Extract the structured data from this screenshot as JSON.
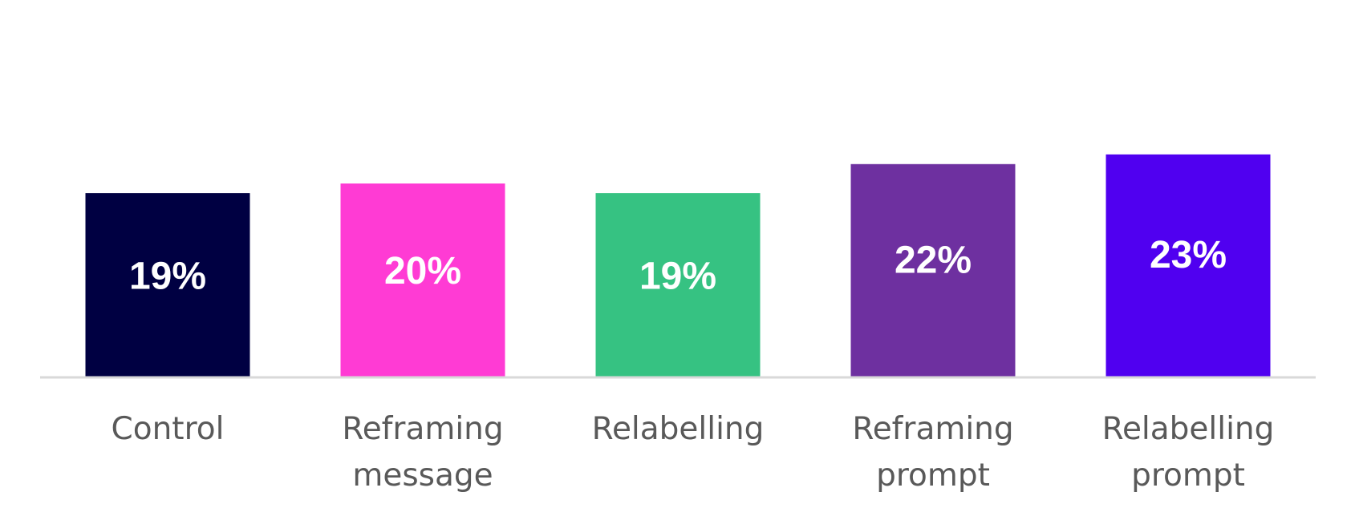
{
  "chart_data": {
    "type": "bar",
    "title": "",
    "xlabel": "",
    "ylabel": "",
    "categories": [
      [
        "Control"
      ],
      [
        "Reframing",
        "message"
      ],
      [
        "Relabelling"
      ],
      [
        "Reframing",
        "prompt"
      ],
      [
        "Relabelling",
        "prompt"
      ]
    ],
    "values": [
      19,
      20,
      19,
      22,
      23
    ],
    "data_labels": [
      "19%",
      "20%",
      "19%",
      "22%",
      "23%"
    ],
    "colors": [
      "#000042",
      "#ff3bd4",
      "#36c282",
      "#6e30a0",
      "#5000f0"
    ],
    "ylim": [
      0,
      30
    ],
    "grid": false,
    "legend": "none",
    "axis_color": "#d9d9d9"
  }
}
